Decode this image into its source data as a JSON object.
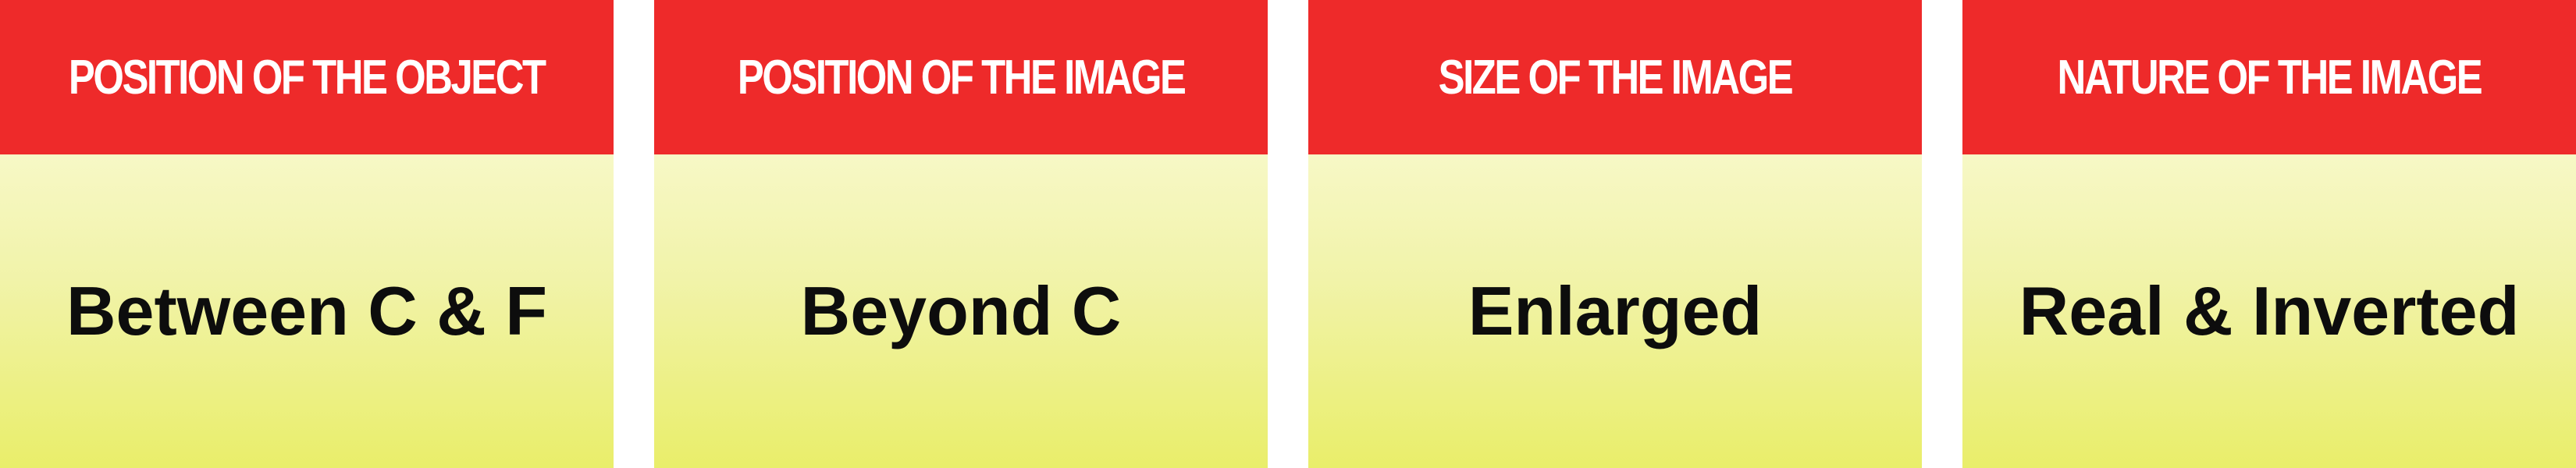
{
  "columns": [
    {
      "header": "POSITION OF THE OBJECT",
      "value": "Between C & F"
    },
    {
      "header": "POSITION OF THE IMAGE",
      "value": "Beyond C"
    },
    {
      "header": "SIZE OF THE IMAGE",
      "value": "Enlarged"
    },
    {
      "header": "NATURE OF THE IMAGE",
      "value": "Real & Inverted"
    }
  ],
  "colors": {
    "header_background": "#ee2a2a",
    "header_text": "#ffffff",
    "body_gradient_top": "#f7f8c6",
    "body_gradient_bottom": "#e9ee6a",
    "body_text": "#0d0d0d"
  }
}
